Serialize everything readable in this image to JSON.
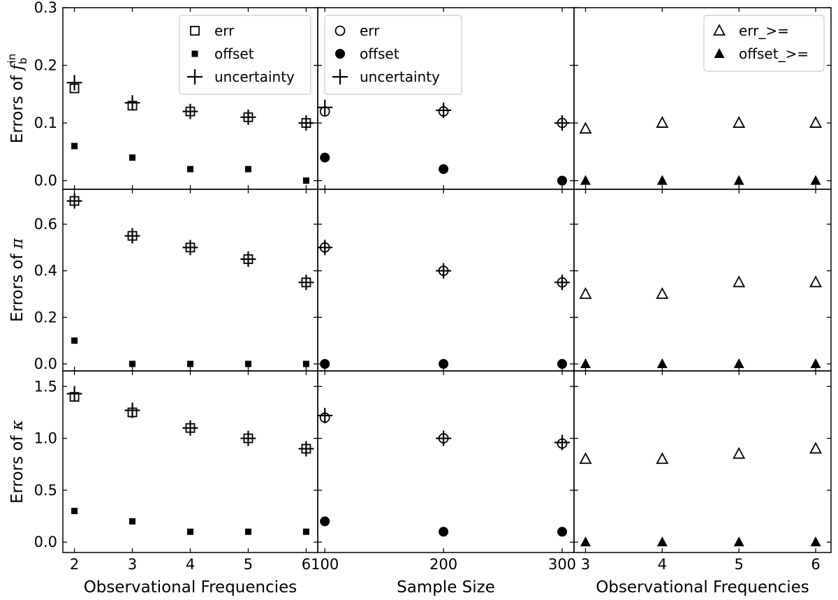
{
  "chart_data": {
    "type": "scatter",
    "rows": [
      {
        "ylabel_prefix": "Errors of ",
        "ylabel_symbol": "f",
        "ylabel_sub": "b",
        "ylabel_sup": "in",
        "ylim": [
          -0.015,
          0.3
        ],
        "yticks": [
          0.0,
          0.1,
          0.2,
          0.3
        ],
        "ytick_labels": [
          "0.0",
          "0.1",
          "0.2",
          "0.3"
        ]
      },
      {
        "ylabel_prefix": "Errors of ",
        "ylabel_symbol": "π",
        "ylim": [
          -0.03,
          0.75
        ],
        "yticks": [
          0.0,
          0.2,
          0.4,
          0.6
        ],
        "ytick_labels": [
          "0.0",
          "0.2",
          "0.4",
          "0.6"
        ]
      },
      {
        "ylabel_prefix": "Errors of ",
        "ylabel_symbol": "κ",
        "ylim": [
          -0.1,
          1.65
        ],
        "yticks": [
          0.0,
          0.5,
          1.0,
          1.5
        ],
        "ytick_labels": [
          "0.0",
          "0.5",
          "1.0",
          "1.5"
        ]
      }
    ],
    "columns": [
      {
        "xlabel": "Observational Frequencies",
        "xlim": [
          1.8,
          6.2
        ],
        "xticks": [
          2,
          3,
          4,
          5,
          6
        ],
        "xtick_labels": [
          "2",
          "3",
          "4",
          "5",
          "6"
        ],
        "legend": [
          {
            "marker": "square-open",
            "label": "err"
          },
          {
            "marker": "square-filled",
            "label": "offset"
          },
          {
            "marker": "plus",
            "label": "uncertainty"
          }
        ],
        "legend_location": "top-right",
        "legend_row": 0,
        "x": [
          2,
          3,
          4,
          5,
          6
        ],
        "rows": [
          {
            "err": [
              0.16,
              0.13,
              0.12,
              0.11,
              0.1
            ],
            "offset": [
              0.06,
              0.04,
              0.02,
              0.02,
              0.0
            ],
            "uncertainty": [
              0.17,
              0.135,
              0.12,
              0.11,
              0.1
            ]
          },
          {
            "err": [
              0.7,
              0.55,
              0.5,
              0.45,
              0.35
            ],
            "offset": [
              0.1,
              0.0,
              0.0,
              0.0,
              0.0
            ],
            "uncertainty": [
              0.7,
              0.55,
              0.5,
              0.45,
              0.35
            ]
          },
          {
            "err": [
              1.4,
              1.25,
              1.1,
              1.0,
              0.9
            ],
            "offset": [
              0.3,
              0.2,
              0.1,
              0.1,
              0.1
            ],
            "uncertainty": [
              1.43,
              1.27,
              1.1,
              1.0,
              0.9
            ]
          }
        ]
      },
      {
        "xlabel": "Sample Size",
        "xlim": [
          94,
          310
        ],
        "xticks": [
          100,
          200,
          300
        ],
        "xtick_labels": [
          "100",
          "200",
          "300"
        ],
        "legend": [
          {
            "marker": "circle-open",
            "label": "err"
          },
          {
            "marker": "circle-filled",
            "label": "offset"
          },
          {
            "marker": "plus",
            "label": "uncertainty"
          }
        ],
        "legend_location": "top-left",
        "legend_row": 0,
        "x": [
          100,
          200,
          300
        ],
        "rows": [
          {
            "err": [
              0.12,
              0.12,
              0.1
            ],
            "offset": [
              0.04,
              0.02,
              0.0
            ],
            "uncertainty": [
              0.127,
              0.122,
              0.1
            ]
          },
          {
            "err": [
              0.5,
              0.4,
              0.35
            ],
            "offset": [
              0.0,
              0.0,
              0.0
            ],
            "uncertainty": [
              0.5,
              0.4,
              0.35
            ]
          },
          {
            "err": [
              1.2,
              1.0,
              0.95
            ],
            "offset": [
              0.2,
              0.1,
              0.1
            ],
            "uncertainty": [
              1.22,
              1.0,
              0.96
            ]
          }
        ]
      },
      {
        "xlabel": "Observational Frequencies",
        "xlim": [
          2.85,
          6.2
        ],
        "xticks": [
          3,
          4,
          5,
          6
        ],
        "xtick_labels": [
          "3",
          "4",
          "5",
          "6"
        ],
        "legend": [
          {
            "marker": "triangle-open",
            "label": "err_>="
          },
          {
            "marker": "triangle-filled",
            "label": "offset_>="
          }
        ],
        "legend_location": "top-right",
        "legend_row": 0,
        "x": [
          3,
          4,
          5,
          6
        ],
        "rows": [
          {
            "err": [
              0.09,
              0.1,
              0.1,
              0.1
            ],
            "offset": [
              0.0,
              0.0,
              0.0,
              0.0
            ]
          },
          {
            "err": [
              0.3,
              0.3,
              0.35,
              0.35
            ],
            "offset": [
              0.0,
              0.0,
              0.0,
              0.0
            ]
          },
          {
            "err": [
              0.8,
              0.8,
              0.85,
              0.9
            ],
            "offset": [
              0.0,
              0.0,
              0.0,
              0.0
            ]
          }
        ]
      }
    ]
  }
}
